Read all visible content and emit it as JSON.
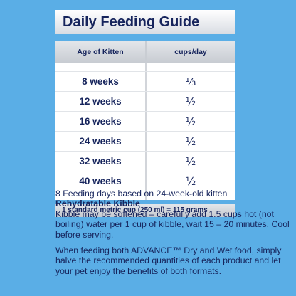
{
  "guide": {
    "title": "Daily Feeding Guide",
    "columns": [
      "Age of Kitten",
      "cups/day"
    ],
    "rows": [
      {
        "age": "8 weeks",
        "cups": "⅓"
      },
      {
        "age": "12 weeks",
        "cups": "½"
      },
      {
        "age": "16 weeks",
        "cups": "½"
      },
      {
        "age": "24 weeks",
        "cups": "½"
      },
      {
        "age": "32 weeks",
        "cups": "½"
      },
      {
        "age": "40 weeks",
        "cups": "½"
      }
    ],
    "footnote": "1 standard metric cup (250 ml) = 115 grams"
  },
  "notes": {
    "feeding_days": "8 Feeding days based on 24-week-old kitten",
    "heading": "Rehydratable Kibble",
    "kibble_text": "Kibble may be softened – carefully add 1.5 cups hot (not boiling) water per 1 cup of kibble, wait 15 – 20 minutes.  Cool before serving.",
    "combined_text": "When feeding both ADVANCE™ Dry and Wet food, simply halve the recommended quantities of each product and let your pet enjoy the benefits of both formats."
  },
  "colors": {
    "background": "#5aaee6",
    "text": "#16245c"
  }
}
